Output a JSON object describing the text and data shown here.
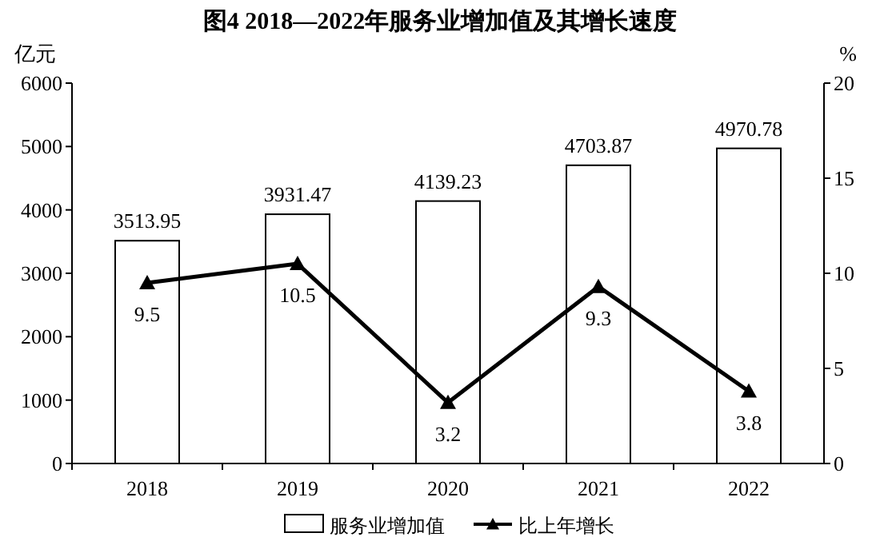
{
  "chart_data": {
    "type": "bar",
    "title": "图4  2018—2022年服务业增加值及其增长速度",
    "ylabel": "亿元",
    "y2label": "%",
    "categories": [
      "2018",
      "2019",
      "2020",
      "2021",
      "2022"
    ],
    "series": [
      {
        "name": "服务业增加值",
        "color": "#ffffff",
        "values": [
          3513.95,
          3931.47,
          4139.23,
          4703.87,
          4970.78
        ]
      },
      {
        "name": "比上年增长",
        "type": "line",
        "axis": "y2",
        "color": "#000000",
        "marker": "triangle",
        "values": [
          9.5,
          10.5,
          3.2,
          9.3,
          3.8
        ]
      }
    ],
    "ylim": [
      0,
      6000
    ],
    "yticks": [
      0,
      1000,
      2000,
      3000,
      4000,
      5000,
      6000
    ],
    "y2lim": [
      0,
      20
    ],
    "y2ticks": [
      0,
      5,
      10,
      15,
      20
    ],
    "data_labels": true,
    "legend": "bottom"
  }
}
